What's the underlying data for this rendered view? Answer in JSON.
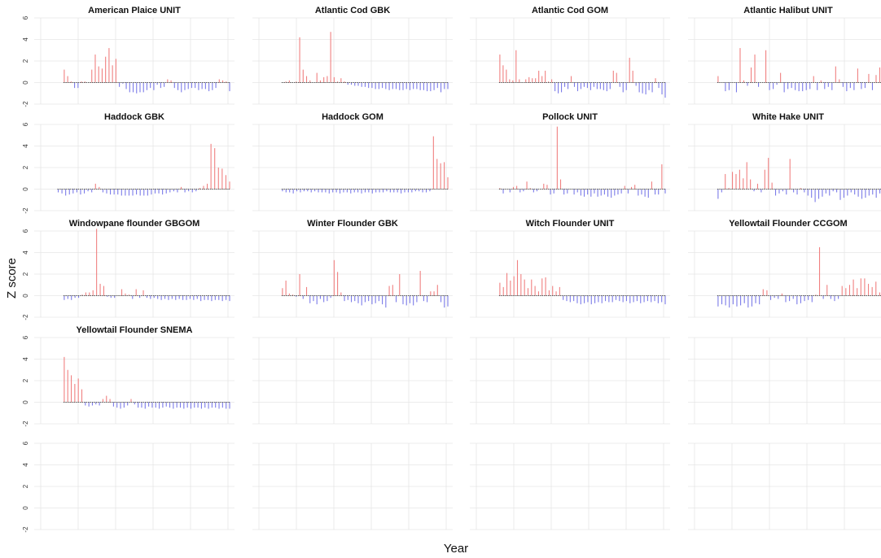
{
  "figure": {
    "xlabel": "Year",
    "ylabel": "Z score",
    "colors": {
      "positive": "#f08080",
      "negative": "#7b7be8",
      "zero_line": "#555555",
      "grid": "#e6e6e6"
    }
  },
  "chart_data": {
    "type": "bar",
    "ylim": [
      -2,
      6
    ],
    "yticks": [
      -2,
      0,
      2,
      4,
      6
    ],
    "grid": true,
    "rows": 5,
    "cols": 4,
    "panels": [
      {
        "title": "American Plaice UNIT",
        "start_frac": 0.15,
        "values": [
          1.2,
          0.6,
          0.1,
          -0.5,
          -0.5,
          0.1,
          0.1,
          0.0,
          1.2,
          2.6,
          1.5,
          1.3,
          2.4,
          3.2,
          1.6,
          2.2,
          -0.4,
          -0.1,
          -0.6,
          -0.9,
          -0.9,
          -1.0,
          -0.9,
          -0.9,
          -0.7,
          -0.5,
          -0.7,
          -0.2,
          -0.5,
          -0.4,
          0.3,
          0.2,
          -0.5,
          -0.7,
          -0.9,
          -0.7,
          -0.6,
          -0.5,
          -0.5,
          -0.7,
          -0.6,
          -0.6,
          -0.8,
          -0.7,
          -0.5,
          0.3,
          0.2,
          0.1,
          -0.8
        ]
      },
      {
        "title": "Atlantic Cod GBK",
        "start_frac": 0.15,
        "values": [
          0.0,
          0.1,
          0.2,
          0.0,
          0.1,
          4.2,
          1.2,
          0.6,
          0.2,
          0.0,
          0.9,
          0.2,
          0.5,
          0.6,
          4.7,
          0.5,
          0.1,
          0.4,
          0.1,
          -0.2,
          -0.2,
          -0.3,
          -0.3,
          -0.4,
          -0.4,
          -0.5,
          -0.5,
          -0.6,
          -0.6,
          -0.5,
          -0.6,
          -0.7,
          -0.6,
          -0.6,
          -0.7,
          -0.7,
          -0.6,
          -0.7,
          -0.6,
          -0.6,
          -0.7,
          -0.7,
          -0.8,
          -0.8,
          -0.7,
          -0.5,
          -0.9,
          -0.6,
          -0.6
        ]
      },
      {
        "title": "Atlantic Cod GOM",
        "start_frac": 0.15,
        "values": [
          2.6,
          1.6,
          1.2,
          0.3,
          0.2,
          3.0,
          0.3,
          0.0,
          0.3,
          0.5,
          0.4,
          0.4,
          1.1,
          0.6,
          1.1,
          0.1,
          0.3,
          -0.8,
          -1.0,
          -0.9,
          -0.4,
          -0.6,
          0.6,
          -0.4,
          -0.8,
          -0.6,
          -0.4,
          -0.5,
          -0.7,
          -0.4,
          -0.6,
          -0.6,
          -0.7,
          -0.8,
          -0.6,
          1.1,
          0.9,
          -0.4,
          -0.9,
          -0.7,
          2.3,
          1.1,
          -0.3,
          -0.9,
          -1.0,
          -1.1,
          -0.7,
          -0.9,
          0.4,
          -0.5,
          -1.1,
          -1.4
        ]
      },
      {
        "title": "Atlantic Halibut UNIT",
        "start_frac": 0.15,
        "values": [
          0.6,
          0.0,
          -0.8,
          -0.7,
          0.0,
          -0.9,
          3.2,
          0.2,
          -0.3,
          1.4,
          2.6,
          -0.4,
          0.0,
          3.0,
          -0.7,
          -0.6,
          -0.2,
          0.9,
          -0.9,
          -0.6,
          -0.5,
          -0.7,
          -0.8,
          -0.8,
          -0.7,
          -0.6,
          0.6,
          -0.7,
          0.2,
          -0.6,
          -0.4,
          -0.7,
          1.5,
          0.3,
          -0.4,
          -0.8,
          -0.5,
          -0.7,
          1.3,
          -0.6,
          -0.5,
          0.8,
          -0.7,
          0.7,
          1.4,
          0.1
        ]
      },
      {
        "title": "Haddock GBK",
        "start_frac": 0.12,
        "values": [
          -0.3,
          -0.4,
          -0.6,
          -0.5,
          -0.4,
          -0.3,
          -0.5,
          -0.4,
          -0.2,
          -0.3,
          0.5,
          0.2,
          -0.3,
          -0.4,
          -0.5,
          -0.5,
          -0.5,
          -0.6,
          -0.6,
          -0.6,
          -0.6,
          -0.5,
          -0.6,
          -0.6,
          -0.6,
          -0.5,
          -0.4,
          -0.4,
          -0.5,
          -0.4,
          -0.3,
          -0.2,
          -0.3,
          0.2,
          -0.3,
          -0.2,
          -0.3,
          -0.2,
          0.1,
          0.3,
          0.5,
          4.2,
          3.8,
          2.0,
          1.9,
          1.3,
          0.7
        ]
      },
      {
        "title": "Haddock GOM",
        "start_frac": 0.15,
        "values": [
          -0.2,
          -0.3,
          -0.3,
          -0.4,
          -0.2,
          -0.3,
          -0.2,
          -0.2,
          -0.3,
          -0.2,
          -0.3,
          -0.3,
          -0.3,
          -0.4,
          -0.3,
          -0.3,
          -0.4,
          -0.3,
          -0.3,
          -0.4,
          -0.3,
          -0.3,
          -0.4,
          -0.3,
          -0.3,
          -0.4,
          -0.3,
          -0.3,
          -0.3,
          -0.2,
          -0.3,
          -0.3,
          -0.3,
          -0.4,
          -0.3,
          -0.3,
          -0.3,
          -0.2,
          -0.2,
          -0.3,
          -0.3,
          -0.2,
          4.9,
          2.8,
          2.4,
          2.5,
          1.1
        ]
      },
      {
        "title": "Pollock UNIT",
        "start_frac": 0.15,
        "values": [
          0.1,
          -0.4,
          0.0,
          -0.3,
          0.2,
          0.3,
          -0.3,
          -0.2,
          0.7,
          0.1,
          -0.3,
          -0.2,
          0.0,
          0.5,
          0.4,
          -0.5,
          -0.4,
          5.8,
          0.9,
          -0.5,
          -0.4,
          0.0,
          -0.5,
          -0.3,
          -0.6,
          -0.7,
          -0.5,
          -0.7,
          -0.4,
          -0.7,
          -0.6,
          -0.5,
          -0.7,
          -0.8,
          -0.6,
          -0.5,
          -0.4,
          0.3,
          -0.4,
          0.2,
          0.4,
          -0.6,
          -0.5,
          -0.7,
          -0.8,
          0.7,
          -0.5,
          -0.5,
          2.3,
          -0.4
        ]
      },
      {
        "title": "White Hake UNIT",
        "start_frac": 0.15,
        "values": [
          -0.9,
          -0.3,
          1.4,
          0.1,
          1.6,
          1.4,
          1.8,
          1.0,
          2.5,
          0.9,
          -0.2,
          0.5,
          -0.3,
          1.8,
          2.9,
          0.6,
          -0.6,
          -0.4,
          -0.2,
          -0.5,
          2.8,
          -0.3,
          -0.5,
          0.1,
          -0.3,
          -0.6,
          -0.8,
          -1.2,
          -0.9,
          -0.7,
          -0.4,
          -0.6,
          -0.2,
          -0.3,
          -1.0,
          -0.8,
          -0.6,
          -0.3,
          -0.5,
          -0.7,
          -0.9,
          -0.8,
          -0.6,
          -0.5,
          -0.8,
          -0.4,
          -0.3
        ]
      },
      {
        "title": "Windowpane flounder GBGOM",
        "start_frac": 0.15,
        "values": [
          -0.4,
          -0.3,
          -0.4,
          -0.2,
          -0.2,
          0.1,
          0.3,
          0.3,
          0.5,
          6.2,
          1.1,
          0.9,
          -0.1,
          -0.2,
          -0.2,
          0.0,
          0.6,
          0.2,
          0.1,
          -0.3,
          0.6,
          -0.2,
          0.5,
          -0.2,
          -0.3,
          -0.2,
          -0.3,
          -0.4,
          -0.3,
          -0.4,
          -0.3,
          -0.4,
          -0.3,
          -0.4,
          -0.4,
          -0.3,
          -0.4,
          -0.3,
          -0.5,
          -0.4,
          -0.4,
          -0.5,
          -0.4,
          -0.4,
          -0.5,
          -0.4,
          -0.5
        ]
      },
      {
        "title": "Winter Flounder GBK",
        "start_frac": 0.15,
        "values": [
          0.7,
          1.4,
          0.2,
          0.1,
          -0.1,
          2.0,
          -0.3,
          0.8,
          -0.7,
          -0.5,
          -0.8,
          -0.3,
          -0.6,
          -0.5,
          -0.2,
          3.3,
          2.2,
          0.3,
          -0.5,
          -0.4,
          -0.6,
          -0.5,
          -0.7,
          -0.9,
          -0.6,
          -0.5,
          -0.8,
          -0.7,
          -0.5,
          -0.8,
          -1.1,
          0.9,
          1.0,
          -0.6,
          2.0,
          -0.8,
          -0.9,
          -0.7,
          -0.9,
          -0.6,
          2.3,
          -0.5,
          -0.6,
          0.4,
          0.4,
          1.0,
          -0.6,
          -1.1,
          -1.0
        ]
      },
      {
        "title": "Witch Flounder UNIT",
        "start_frac": 0.15,
        "values": [
          1.2,
          0.8,
          2.1,
          1.4,
          1.8,
          3.3,
          2.0,
          1.5,
          0.7,
          1.5,
          0.9,
          0.4,
          1.6,
          1.7,
          0.5,
          0.9,
          0.4,
          0.8,
          -0.4,
          -0.5,
          -0.6,
          -0.5,
          -0.7,
          -0.8,
          -0.7,
          -0.6,
          -0.8,
          -0.7,
          -0.6,
          -0.7,
          -0.5,
          -0.6,
          -0.6,
          -0.4,
          -0.5,
          -0.6,
          -0.5,
          -0.7,
          -0.6,
          -0.5,
          -0.7,
          -0.6,
          -0.5,
          -0.6,
          -0.5,
          -0.7,
          -0.6,
          -0.8
        ]
      },
      {
        "title": "Yellowtail Flounder CCGOM",
        "start_frac": 0.15,
        "values": [
          -1.0,
          -0.8,
          -0.9,
          -1.1,
          -0.8,
          -1.0,
          -0.9,
          -0.7,
          -1.1,
          -1.0,
          -0.7,
          -0.8,
          0.6,
          0.5,
          -0.4,
          -0.2,
          -0.3,
          0.2,
          -0.6,
          -0.5,
          -0.3,
          -0.8,
          -0.7,
          -0.5,
          -0.4,
          -0.6,
          0.1,
          4.5,
          -0.3,
          1.0,
          -0.3,
          -0.5,
          -0.3,
          0.9,
          0.7,
          1.0,
          1.5,
          0.7,
          1.6,
          1.6,
          1.1,
          0.8,
          1.3,
          0.3,
          0.9
        ]
      },
      {
        "title": "Yellowtail Flounder SNEMA",
        "start_frac": 0.15,
        "values": [
          4.2,
          3.0,
          2.5,
          1.7,
          2.2,
          1.2,
          -0.3,
          -0.4,
          -0.3,
          -0.2,
          -0.3,
          0.3,
          0.6,
          0.3,
          -0.4,
          -0.5,
          -0.6,
          -0.5,
          -0.3,
          0.3,
          -0.2,
          -0.5,
          -0.5,
          -0.6,
          -0.4,
          -0.5,
          -0.5,
          -0.6,
          -0.5,
          -0.4,
          -0.5,
          -0.6,
          -0.5,
          -0.5,
          -0.6,
          -0.5,
          -0.6,
          -0.5,
          -0.5,
          -0.6,
          -0.5,
          -0.6,
          -0.5,
          -0.5,
          -0.6,
          -0.5,
          -0.6,
          -0.6
        ]
      }
    ]
  }
}
